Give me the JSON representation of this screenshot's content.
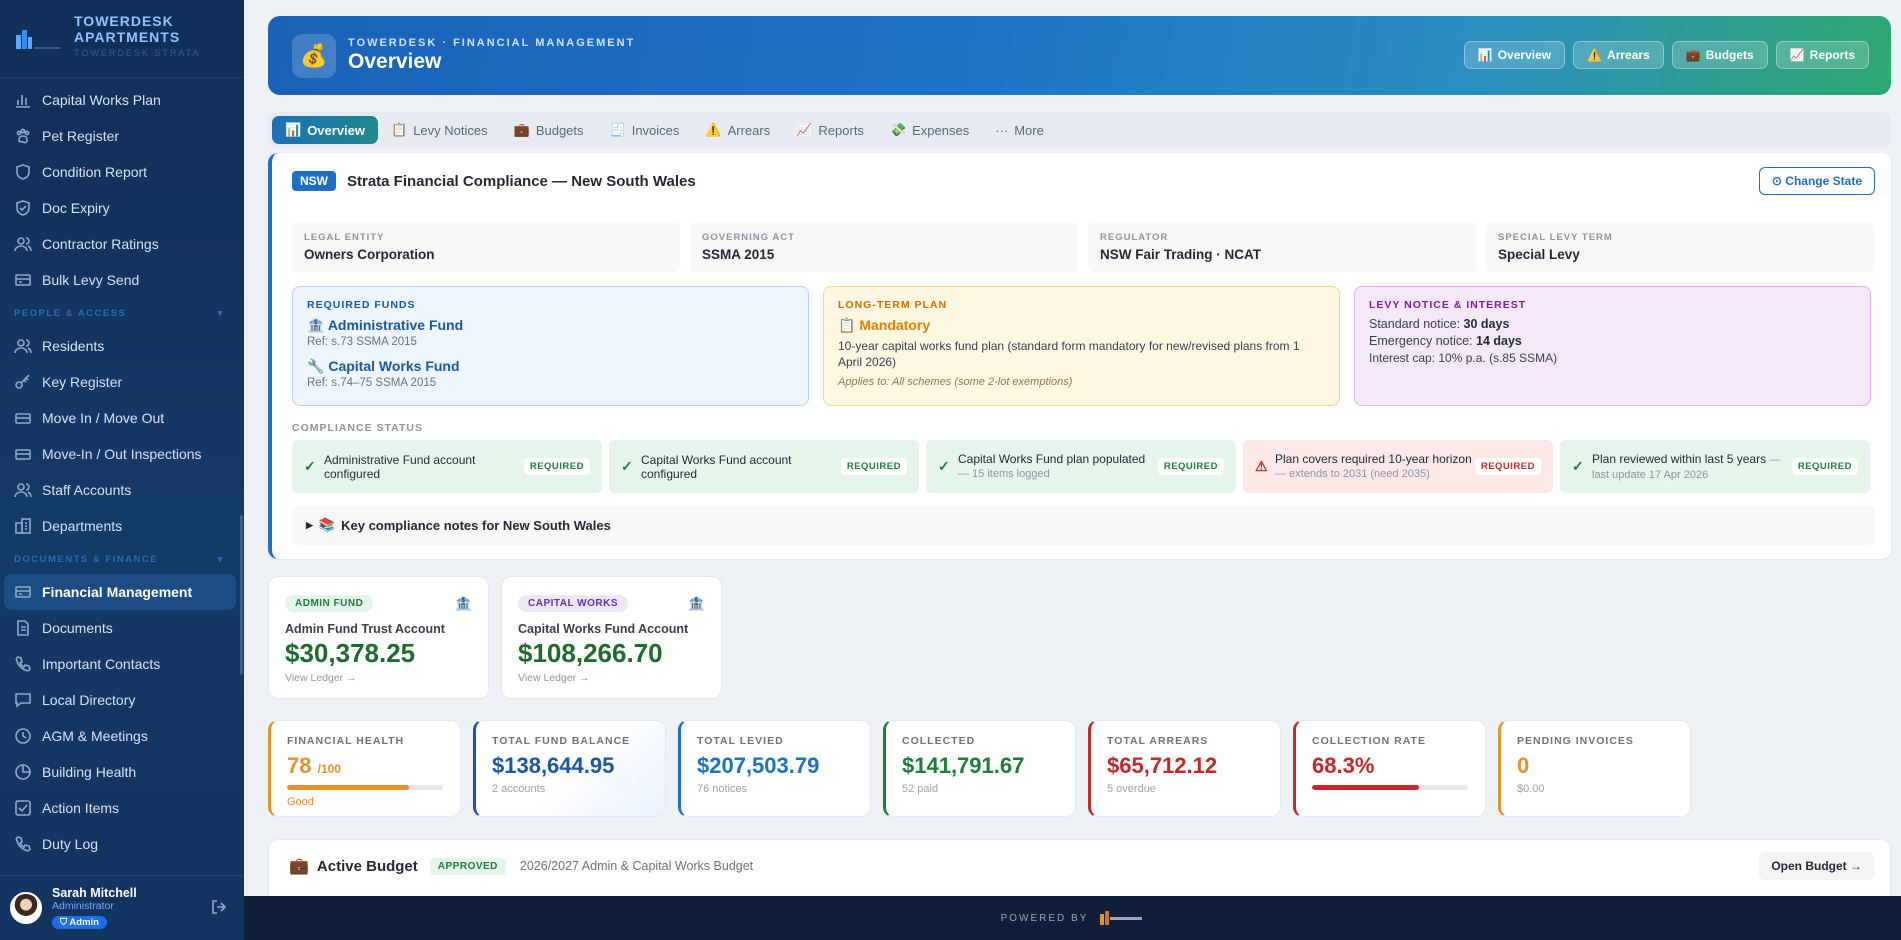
{
  "brand": {
    "name_line1": "TOWERDESK",
    "name_line2": "APARTMENTS",
    "sub": "TOWERDESK STRATA"
  },
  "sidebar": {
    "items_top": [
      {
        "label": "Capital Works Plan",
        "icon": "bar-chart-icon"
      },
      {
        "label": "Pet Register",
        "icon": "paw-icon"
      },
      {
        "label": "Condition Report",
        "icon": "shield-icon"
      },
      {
        "label": "Doc Expiry",
        "icon": "shield-check-icon"
      },
      {
        "label": "Contractor Ratings",
        "icon": "users-icon"
      },
      {
        "label": "Bulk Levy Send",
        "icon": "envelope-icon"
      }
    ],
    "section_people": "PEOPLE & ACCESS",
    "items_people": [
      {
        "label": "Residents",
        "icon": "users-icon"
      },
      {
        "label": "Key Register",
        "icon": "key-icon"
      },
      {
        "label": "Move In / Move Out",
        "icon": "truck-icon"
      },
      {
        "label": "Move-In / Out Inspections",
        "icon": "clipboard-icon"
      },
      {
        "label": "Staff Accounts",
        "icon": "users-icon"
      },
      {
        "label": "Departments",
        "icon": "building-icon"
      }
    ],
    "section_docs": "DOCUMENTS & FINANCE",
    "items_docs": [
      {
        "label": "Financial Management",
        "icon": "wallet-icon"
      },
      {
        "label": "Documents",
        "icon": "document-icon"
      },
      {
        "label": "Important Contacts",
        "icon": "phone-icon"
      },
      {
        "label": "Local Directory",
        "icon": "chat-icon"
      },
      {
        "label": "AGM & Meetings",
        "icon": "clock-icon"
      },
      {
        "label": "Building Health",
        "icon": "pie-icon"
      },
      {
        "label": "Action Items",
        "icon": "checkbox-icon"
      },
      {
        "label": "Duty Log",
        "icon": "phone-icon"
      }
    ]
  },
  "user": {
    "name": "Sarah Mitchell",
    "role": "Administrator",
    "badge": "Admin"
  },
  "hero": {
    "kicker": "TOWERDESK · FINANCIAL MANAGEMENT",
    "title": "Overview",
    "nav": [
      {
        "label": "Overview",
        "icon": "📊"
      },
      {
        "label": "Arrears",
        "icon": "⚠️"
      },
      {
        "label": "Budgets",
        "icon": "💼"
      },
      {
        "label": "Reports",
        "icon": "📈"
      }
    ]
  },
  "tabs": [
    {
      "label": "Overview",
      "icon": "📊"
    },
    {
      "label": "Levy Notices",
      "icon": "📋"
    },
    {
      "label": "Budgets",
      "icon": "💼"
    },
    {
      "label": "Invoices",
      "icon": "🧾"
    },
    {
      "label": "Arrears",
      "icon": "⚠️"
    },
    {
      "label": "Reports",
      "icon": "📈"
    },
    {
      "label": "Expenses",
      "icon": "💸"
    },
    {
      "label": "More",
      "icon": "···"
    }
  ],
  "compliance": {
    "state": "NSW",
    "title": "Strata Financial Compliance — New South Wales",
    "change_state": "⊙ Change State",
    "facts": [
      {
        "label": "LEGAL ENTITY",
        "value": "Owners Corporation"
      },
      {
        "label": "GOVERNING ACT",
        "value": "SSMA 2015"
      },
      {
        "label": "REGULATOR",
        "value": "NSW Fair Trading · NCAT"
      },
      {
        "label": "SPECIAL LEVY TERM",
        "value": "Special Levy"
      }
    ],
    "required_funds": {
      "label": "REQUIRED FUNDS",
      "funds": [
        {
          "name": "Administrative Fund",
          "icon": "🏦",
          "ref": "Ref: s.73 SSMA 2015"
        },
        {
          "name": "Capital Works Fund",
          "icon": "🔧",
          "ref": "Ref: s.74–75 SSMA 2015"
        }
      ]
    },
    "long_term_plan": {
      "label": "LONG-TERM PLAN",
      "value": "Mandatory",
      "desc": "10-year capital works fund plan (standard form mandatory for new/revised plans from 1 April 2026)",
      "note": "Applies to: All schemes (some 2-lot exemptions)"
    },
    "levy_notice": {
      "label": "LEVY NOTICE & INTEREST",
      "standard_label": "Standard notice:",
      "standard_value": "30 days",
      "emergency_label": "Emergency notice:",
      "emergency_value": "14 days",
      "interest": "Interest cap: 10% p.a. (s.85 SSMA)"
    },
    "status_label": "COMPLIANCE STATUS",
    "checks": [
      {
        "text": "Administrative Fund account configured",
        "sub": "",
        "badge": "REQUIRED",
        "ok": true
      },
      {
        "text": "Capital Works Fund account configured",
        "sub": "",
        "badge": "REQUIRED",
        "ok": true
      },
      {
        "text": "Capital Works Fund plan populated",
        "sub": "— 15 items logged",
        "badge": "REQUIRED",
        "ok": true
      },
      {
        "text": "Plan covers required 10-year horizon",
        "sub": "— extends to 2031 (need 2035)",
        "badge": "REQUIRED",
        "ok": false
      },
      {
        "text": "Plan reviewed within last 5 years",
        "sub": "— last update 17 Apr 2026",
        "badge": "REQUIRED",
        "ok": true
      }
    ],
    "notes": "Key compliance notes for New South Wales"
  },
  "accounts": [
    {
      "badge": "ADMIN FUND",
      "name": "Admin Fund Trust Account",
      "amount": "$30,378.25",
      "link": "View Ledger →",
      "badge_bg": "#e6f4ea",
      "badge_fg": "#1e7d3a"
    },
    {
      "badge": "CAPITAL WORKS",
      "name": "Capital Works Fund Account",
      "amount": "$108,266.70",
      "link": "View Ledger →",
      "badge_bg": "#ede7f6",
      "badge_fg": "#5e35b1"
    }
  ],
  "kpis": [
    {
      "label": "FINANCIAL HEALTH",
      "value": "78",
      "suffix": "/100",
      "sub": "Good",
      "color": "#e8912a",
      "bar": 0.78
    },
    {
      "label": "TOTAL FUND BALANCE",
      "value": "$138,644.95",
      "sub": "2 accounts",
      "color": "#1a56a8"
    },
    {
      "label": "TOTAL LEVIED",
      "value": "$207,503.79",
      "sub": "76 notices",
      "color": "#1f6fc5"
    },
    {
      "label": "COLLECTED",
      "value": "$141,791.67",
      "sub": "52 paid",
      "color": "#1e7d3a"
    },
    {
      "label": "TOTAL ARREARS",
      "value": "$65,712.12",
      "sub": "5 overdue",
      "color": "#c62828"
    },
    {
      "label": "COLLECTION RATE",
      "value": "68.3%",
      "sub": "",
      "color": "#c62828",
      "bar": 0.683
    },
    {
      "label": "PENDING INVOICES",
      "value": "0",
      "sub": "$0.00",
      "color": "#e8912a"
    }
  ],
  "budget": {
    "title": "Active Budget",
    "badge": "APPROVED",
    "desc": "2026/2027 Admin & Capital Works Budget",
    "button": "Open Budget →"
  },
  "footer": {
    "powered": "POWERED BY"
  }
}
